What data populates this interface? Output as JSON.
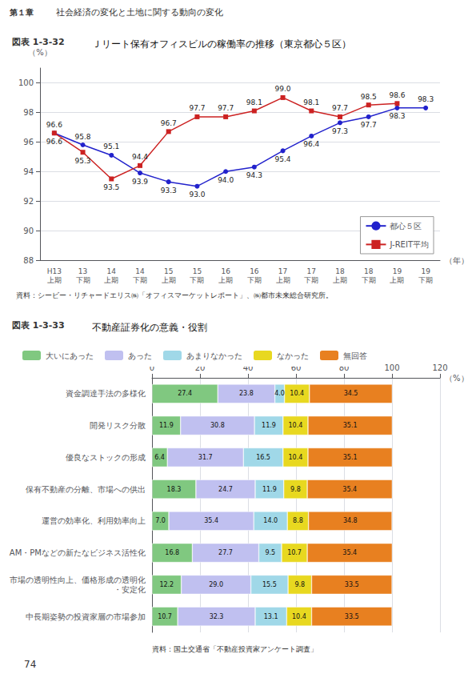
{
  "chart_data": [
    {
      "type": "line",
      "title": "Ｊリート保有オフィスビルの稼働率の推移（東京都心５区）",
      "xlabel": "（年）",
      "ylabel": "（%）",
      "categories": [
        "H13\n上期",
        "13\n下期",
        "14\n上期",
        "14\n下期",
        "15\n上期",
        "15\n下期",
        "16\n上期",
        "16\n下期",
        "17\n上期",
        "17\n下期",
        "18\n上期",
        "18\n下期",
        "19\n上期",
        "19\n下期"
      ],
      "series": [
        {
          "name": "都心５区",
          "color": "#2222cc",
          "marker": "circle",
          "values": [
            96.6,
            95.8,
            95.1,
            93.9,
            93.3,
            93.0,
            94.0,
            94.3,
            95.4,
            96.4,
            97.3,
            97.7,
            98.3,
            98.3
          ],
          "value_labels": [
            "96.6",
            "95.8",
            "95.1",
            "93.9",
            "93.3",
            "93.0",
            "94.0",
            "94.3",
            "95.4",
            "96.4",
            "97.3",
            "97.7",
            "98.3",
            "98.3"
          ]
        },
        {
          "name": "J-REIT平均",
          "color": "#cc2222",
          "marker": "square",
          "values": [
            96.6,
            95.3,
            93.5,
            94.4,
            96.7,
            97.7,
            97.7,
            98.1,
            99.0,
            98.1,
            97.7,
            98.5,
            98.6,
            null
          ],
          "value_labels": [
            "96.6",
            "95.3",
            "93.5",
            "94.4",
            "96.7",
            "97.7",
            "97.7",
            "98.1",
            "99.0",
            "98.1",
            "97.7",
            "98.5",
            "98.6",
            null
          ]
        }
      ],
      "ylim": [
        88,
        101
      ],
      "yticks": [
        88,
        90,
        92,
        94,
        96,
        98,
        100
      ],
      "grid": true,
      "legend": "lower right",
      "data_labels": true,
      "annotations": [
        "第１章",
        "社会経済の変化と土地に関する動向の変化",
        "図表 1-3-32",
        "資料：シービー・リチャードエリス㈱「オフィスマーケットレポート」、㈱都市未来総合研究所。"
      ]
    },
    {
      "type": "bar",
      "orientation": "horizontal",
      "stacked": true,
      "title": "不動産証券化の意義・役割",
      "xlabel": "（%）",
      "categories": [
        "資金調達手法の多様化",
        "開発リスク分散",
        "優良なストックの形成",
        "保有不動産の分離、市場への供出",
        "運営の効率化、利用効率向上",
        "AM・PMなどの新たなビジネス活性化",
        "市場の透明性向上、価格形成の透明化・安定化",
        "中長期姿勢の投資家層の市場参加"
      ],
      "series": [
        {
          "name": "大いにあった",
          "color": "#80c880",
          "values": [
            27.4,
            11.9,
            6.4,
            18.3,
            7.0,
            16.8,
            12.2,
            10.7
          ],
          "value_labels": [
            "27.4",
            "11.9",
            "6.4",
            "18.3",
            "7.0",
            "16.8",
            "12.2",
            "10.7"
          ]
        },
        {
          "name": "あった",
          "color": "#c0c0f0",
          "values": [
            23.8,
            30.8,
            31.7,
            24.7,
            35.4,
            27.7,
            29.0,
            32.3
          ],
          "value_labels": [
            "23.8",
            "30.8",
            "31.7",
            "24.7",
            "35.4",
            "27.7",
            "29.0",
            "32.3"
          ]
        },
        {
          "name": "あまりなかった",
          "color": "#a0d8e8",
          "values": [
            4.0,
            11.9,
            16.5,
            11.9,
            14.0,
            9.5,
            15.5,
            13.1
          ],
          "value_labels": [
            "4.0",
            "11.9",
            "16.5",
            "11.9",
            "14.0",
            "9.5",
            "15.5",
            "13.1"
          ]
        },
        {
          "name": "なかった",
          "color": "#e8d820",
          "values": [
            10.4,
            10.4,
            10.4,
            9.8,
            8.8,
            10.7,
            9.8,
            10.4
          ],
          "value_labels": [
            "10.4",
            "10.4",
            "10.4",
            "9.8",
            "8.8",
            "10.7",
            "9.8",
            "10.4"
          ]
        },
        {
          "name": "無回答",
          "color": "#e88020",
          "values": [
            34.5,
            35.1,
            35.1,
            35.4,
            34.8,
            35.4,
            33.5,
            33.5
          ],
          "value_labels": [
            "34.5",
            "35.1",
            "35.1",
            "35.4",
            "34.8",
            "35.4",
            "33.5",
            "33.5"
          ]
        }
      ],
      "xlim": [
        0,
        120
      ],
      "xticks": [
        0,
        20,
        40,
        60,
        80,
        100,
        120
      ],
      "grid": true,
      "legend": "top",
      "data_labels": true,
      "annotations": [
        "図表 1-3-33",
        "資料：国土交通省「不動産投資家アンケート調査」",
        "74"
      ]
    }
  ]
}
